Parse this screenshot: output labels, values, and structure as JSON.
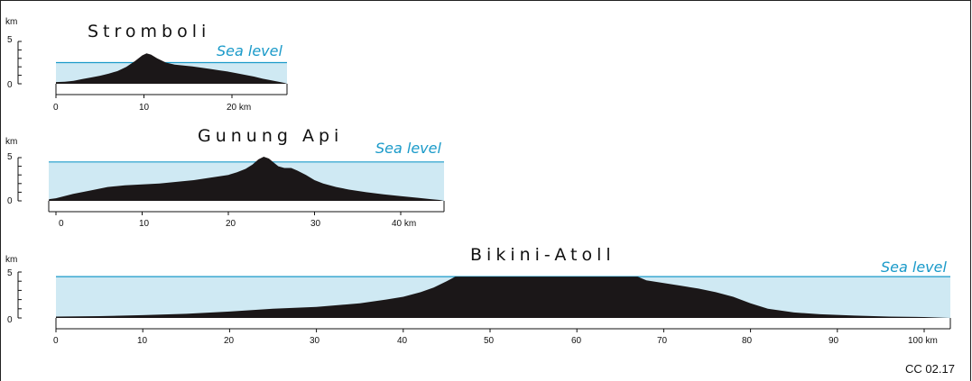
{
  "credit": "CC 02.17",
  "colors": {
    "water": "#cfe9f3",
    "sea_line": "#1a9ac9",
    "terrain": "#1b1718",
    "text": "#111111",
    "sea_text": "#1a9ac9"
  },
  "panels": [
    {
      "title": "Stromboli",
      "sea_label": "Sea level",
      "unit": "km",
      "y_ticks": [
        "5",
        "0"
      ],
      "x_ticks": [
        "0",
        "10",
        "20 km"
      ],
      "sea_level_km": 2.5,
      "max_height_km": 3.6,
      "profile_km": [
        [
          0,
          0.2
        ],
        [
          1,
          0.25
        ],
        [
          2,
          0.35
        ],
        [
          3,
          0.55
        ],
        [
          4,
          0.75
        ],
        [
          5,
          0.95
        ],
        [
          6,
          1.2
        ],
        [
          7,
          1.5
        ],
        [
          8,
          2.0
        ],
        [
          9,
          2.7
        ],
        [
          9.8,
          3.35
        ],
        [
          10.3,
          3.6
        ],
        [
          10.8,
          3.45
        ],
        [
          11.5,
          3.0
        ],
        [
          12.5,
          2.5
        ],
        [
          13.5,
          2.25
        ],
        [
          14.5,
          2.15
        ],
        [
          15.5,
          2.05
        ],
        [
          16.5,
          1.9
        ],
        [
          17.5,
          1.75
        ],
        [
          18.5,
          1.6
        ],
        [
          19.5,
          1.45
        ],
        [
          20.5,
          1.25
        ],
        [
          21.5,
          1.05
        ],
        [
          22.5,
          0.85
        ],
        [
          23.5,
          0.6
        ],
        [
          24.5,
          0.4
        ],
        [
          25.5,
          0.2
        ],
        [
          26,
          0.1
        ]
      ]
    },
    {
      "title": "Gunung Api",
      "sea_label": "Sea level",
      "unit": "km",
      "y_ticks": [
        "5",
        "0"
      ],
      "x_ticks": [
        "0",
        "10",
        "20",
        "30",
        "40 km"
      ],
      "sea_level_km": 4.5,
      "max_height_km": 5.1,
      "profile_km": [
        [
          -0.8,
          0.2
        ],
        [
          0,
          0.3
        ],
        [
          2,
          0.8
        ],
        [
          4,
          1.2
        ],
        [
          6,
          1.6
        ],
        [
          8,
          1.8
        ],
        [
          10,
          1.9
        ],
        [
          12,
          2.0
        ],
        [
          14,
          2.2
        ],
        [
          16,
          2.4
        ],
        [
          18,
          2.7
        ],
        [
          20,
          3.0
        ],
        [
          21,
          3.3
        ],
        [
          22,
          3.7
        ],
        [
          22.8,
          4.2
        ],
        [
          23.5,
          4.8
        ],
        [
          24.1,
          5.1
        ],
        [
          24.7,
          4.9
        ],
        [
          25.3,
          4.4
        ],
        [
          25.8,
          4.0
        ],
        [
          26.5,
          3.8
        ],
        [
          27.3,
          3.8
        ],
        [
          28,
          3.5
        ],
        [
          29,
          3.0
        ],
        [
          30,
          2.4
        ],
        [
          31,
          2.0
        ],
        [
          32.5,
          1.6
        ],
        [
          34,
          1.3
        ],
        [
          36,
          1.0
        ],
        [
          38,
          0.75
        ],
        [
          40,
          0.55
        ],
        [
          42,
          0.35
        ],
        [
          43.5,
          0.2
        ],
        [
          44.5,
          0.1
        ]
      ]
    },
    {
      "title": "Bikini-Atoll",
      "sea_label": "Sea level",
      "unit": "km",
      "y_ticks": [
        "5",
        "0"
      ],
      "x_ticks": [
        "0",
        "10",
        "20",
        "30",
        "40",
        "50",
        "60",
        "70",
        "80",
        "90",
        "100 km"
      ],
      "sea_level_km": 4.5,
      "max_height_km": 4.5,
      "profile_km": [
        [
          0,
          0.15
        ],
        [
          5,
          0.2
        ],
        [
          10,
          0.3
        ],
        [
          15,
          0.45
        ],
        [
          20,
          0.7
        ],
        [
          25,
          1.0
        ],
        [
          30,
          1.2
        ],
        [
          35,
          1.6
        ],
        [
          38,
          2.0
        ],
        [
          40,
          2.3
        ],
        [
          42,
          2.8
        ],
        [
          43.5,
          3.3
        ],
        [
          45,
          4.0
        ],
        [
          46,
          4.5
        ],
        [
          67,
          4.5
        ],
        [
          68,
          4.1
        ],
        [
          70,
          3.8
        ],
        [
          72,
          3.5
        ],
        [
          74,
          3.2
        ],
        [
          76,
          2.8
        ],
        [
          78,
          2.3
        ],
        [
          80,
          1.6
        ],
        [
          82,
          1.0
        ],
        [
          85,
          0.6
        ],
        [
          88,
          0.4
        ],
        [
          92,
          0.25
        ],
        [
          96,
          0.15
        ],
        [
          100,
          0.1
        ],
        [
          103,
          0.0
        ]
      ]
    }
  ]
}
